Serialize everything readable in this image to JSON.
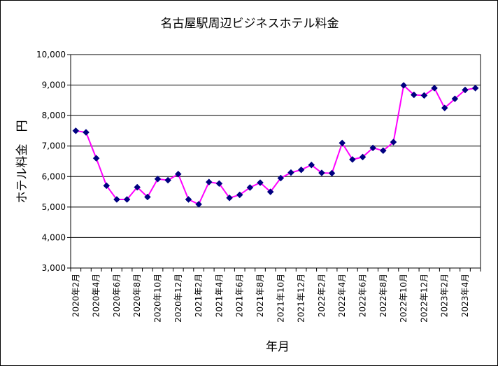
{
  "chart_data": {
    "type": "line",
    "title": "名古屋駅周辺ビジネスホテル料金",
    "xlabel": "年月",
    "ylabel": "ホテル料金　円",
    "ylim": [
      3000,
      10000
    ],
    "yticks": [
      3000,
      4000,
      5000,
      6000,
      7000,
      8000,
      9000,
      10000
    ],
    "ytick_labels": [
      "3,000",
      "4,000",
      "5,000",
      "6,000",
      "7,000",
      "8,000",
      "9,000",
      "10,000"
    ],
    "grid": "horizontal",
    "legend": "none",
    "series_color": "#ff00ff",
    "marker_color": "#000080",
    "marker": "diamond",
    "categories": [
      "2020年2月",
      "2020年3月",
      "2020年4月",
      "2020年5月",
      "2020年6月",
      "2020年7月",
      "2020年8月",
      "2020年9月",
      "2020年10月",
      "2020年11月",
      "2020年12月",
      "2021年1月",
      "2021年2月",
      "2021年3月",
      "2021年4月",
      "2021年5月",
      "2021年6月",
      "2021年7月",
      "2021年8月",
      "2021年9月",
      "2021年10月",
      "2021年11月",
      "2021年12月",
      "2022年1月",
      "2022年2月",
      "2022年3月",
      "2022年4月",
      "2022年5月",
      "2022年6月",
      "2022年7月",
      "2022年8月",
      "2022年9月",
      "2022年10月",
      "2022年11月",
      "2022年12月",
      "2023年1月",
      "2023年2月",
      "2023年3月",
      "2023年4月",
      "2023年5月"
    ],
    "tick_labels": [
      "2020年2月",
      "2020年4月",
      "2020年6月",
      "2020年8月",
      "2020年10月",
      "2020年12月",
      "2021年2月",
      "2021年4月",
      "2021年6月",
      "2021年8月",
      "2021年10月",
      "2021年12月",
      "2022年2月",
      "2022年4月",
      "2022年6月",
      "2022年8月",
      "2022年10月",
      "2022年12月",
      "2023年2月",
      "2023年4月"
    ],
    "series": [
      {
        "values": [
          7500,
          7450,
          6600,
          5700,
          5250,
          5250,
          5650,
          5330,
          5920,
          5880,
          6080,
          5250,
          5090,
          5820,
          5770,
          5300,
          5400,
          5640,
          5800,
          5500,
          5950,
          6130,
          6220,
          6380,
          6120,
          6110,
          7100,
          6560,
          6640,
          6940,
          6850,
          7130,
          8990,
          8680,
          8660,
          8900,
          8250,
          8550,
          8840,
          8900
        ]
      }
    ]
  }
}
